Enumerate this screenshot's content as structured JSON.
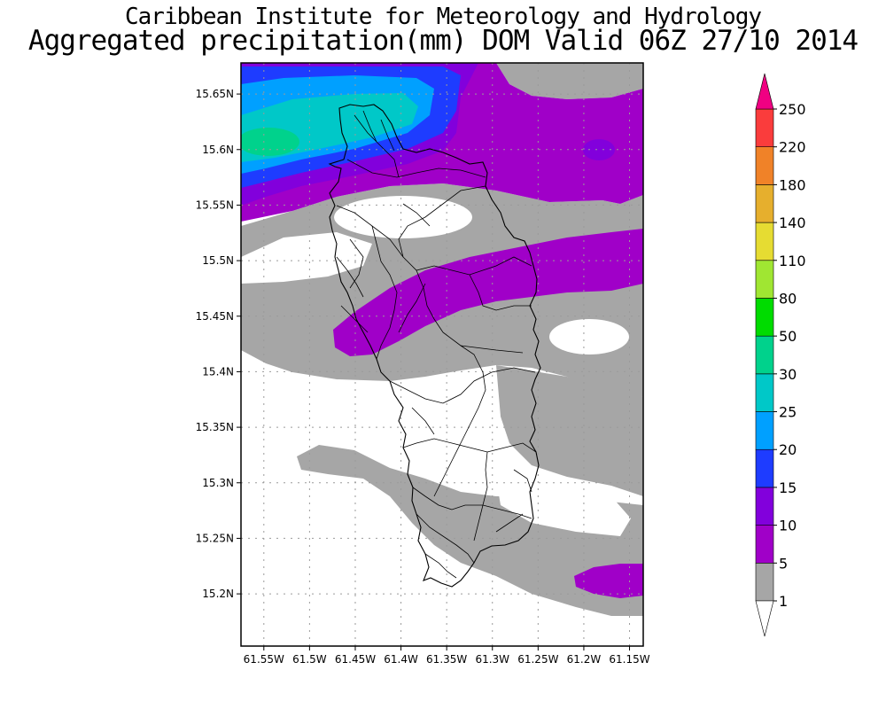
{
  "title_line1": "Caribbean Institute for Meteorology and Hydrology",
  "title_line2": "Aggregated precipitation(mm) DOM Valid 06Z 27/10 2014",
  "map": {
    "lon_range": [
      -61.575,
      -61.135
    ],
    "lat_range": [
      15.153,
      15.678
    ],
    "lon_ticks": [
      -61.55,
      -61.5,
      -61.45,
      -61.4,
      -61.35,
      -61.3,
      -61.25,
      -61.2,
      -61.15
    ],
    "lon_labels": [
      "61.55W",
      "61.5W",
      "61.45W",
      "61.4W",
      "61.35W",
      "61.3W",
      "61.25W",
      "61.2W",
      "61.15W"
    ],
    "lat_ticks": [
      15.2,
      15.25,
      15.3,
      15.35,
      15.4,
      15.45,
      15.5,
      15.55,
      15.6,
      15.65
    ],
    "lat_labels": [
      "15.2N",
      "15.25N",
      "15.3N",
      "15.35N",
      "15.4N",
      "15.45N",
      "15.5N",
      "15.55N",
      "15.6N",
      "15.65N"
    ],
    "grid": true,
    "background_class_color": "#ffffff"
  },
  "colorbar": {
    "labels": [
      "1",
      "5",
      "10",
      "15",
      "20",
      "25",
      "30",
      "50",
      "80",
      "110",
      "140",
      "180",
      "220",
      "250"
    ],
    "colors": [
      "#a6a6a6",
      "#a000c8",
      "#8200dc",
      "#1e3cff",
      "#00a0ff",
      "#00c8c8",
      "#00d28c",
      "#00dc00",
      "#a0e632",
      "#e6dc32",
      "#e6af2d",
      "#f08228",
      "#fa3c3c",
      "#f00082"
    ]
  }
}
